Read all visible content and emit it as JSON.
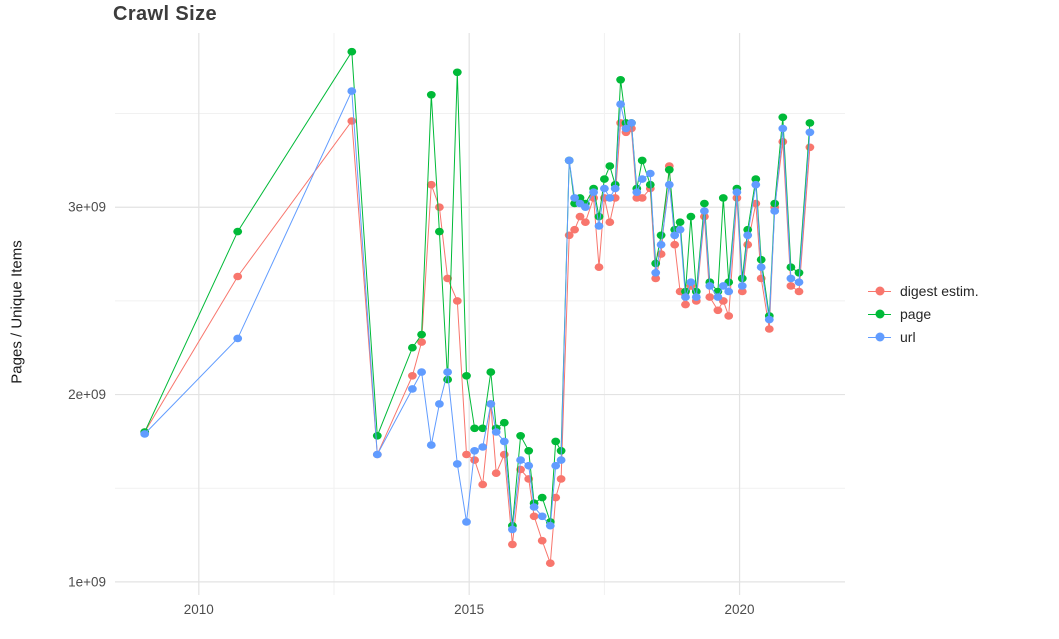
{
  "chart_data": {
    "type": "line",
    "title": "Crawl Size",
    "xlabel": "",
    "ylabel": "Pages / Unique Items",
    "y_values_scale": "1e+09",
    "x": [
      2009.0,
      2010.72,
      2012.83,
      2013.3,
      2013.95,
      2014.12,
      2014.3,
      2014.45,
      2014.6,
      2014.78,
      2014.95,
      2015.1,
      2015.25,
      2015.4,
      2015.5,
      2015.65,
      2015.8,
      2015.95,
      2016.1,
      2016.2,
      2016.35,
      2016.5,
      2016.6,
      2016.7,
      2016.85,
      2016.95,
      2017.05,
      2017.15,
      2017.3,
      2017.4,
      2017.5,
      2017.6,
      2017.7,
      2017.8,
      2017.9,
      2018.0,
      2018.1,
      2018.2,
      2018.35,
      2018.45,
      2018.55,
      2018.7,
      2018.8,
      2018.9,
      2019.0,
      2019.1,
      2019.2,
      2019.35,
      2019.45,
      2019.6,
      2019.7,
      2019.8,
      2019.95,
      2020.05,
      2020.15,
      2020.3,
      2020.4,
      2020.55,
      2020.65,
      2020.8,
      2020.95,
      2021.1,
      2021.3
    ],
    "series": [
      {
        "name": "digest estim.",
        "color": "#F8766D",
        "values": [
          1.8,
          2.63,
          3.46,
          1.68,
          2.1,
          2.28,
          3.12,
          3.0,
          2.62,
          2.5,
          1.68,
          1.65,
          1.52,
          1.95,
          1.58,
          1.68,
          1.2,
          1.6,
          1.55,
          1.35,
          1.22,
          1.1,
          1.45,
          1.55,
          2.85,
          2.88,
          2.95,
          2.92,
          3.05,
          2.68,
          3.05,
          2.92,
          3.05,
          3.45,
          3.4,
          3.42,
          3.05,
          3.05,
          3.1,
          2.62,
          2.75,
          3.22,
          2.8,
          2.55,
          2.48,
          2.58,
          2.5,
          2.95,
          2.52,
          2.45,
          2.5,
          2.42,
          3.05,
          2.55,
          2.8,
          3.02,
          2.62,
          2.35,
          3.0,
          3.35,
          2.58,
          2.55,
          3.32
        ]
      },
      {
        "name": "page",
        "color": "#00BA38",
        "values": [
          1.8,
          2.87,
          3.83,
          1.78,
          2.25,
          2.32,
          3.6,
          2.87,
          2.08,
          3.72,
          2.1,
          1.82,
          1.82,
          2.12,
          1.82,
          1.85,
          1.3,
          1.78,
          1.7,
          1.42,
          1.45,
          1.32,
          1.75,
          1.7,
          3.25,
          3.02,
          3.05,
          3.02,
          3.1,
          2.95,
          3.15,
          3.22,
          3.12,
          3.68,
          3.45,
          3.45,
          3.1,
          3.25,
          3.12,
          2.7,
          2.85,
          3.2,
          2.88,
          2.92,
          2.55,
          2.95,
          2.55,
          3.02,
          2.6,
          2.55,
          3.05,
          2.6,
          3.1,
          2.62,
          2.88,
          3.15,
          2.72,
          2.42,
          3.02,
          3.48,
          2.68,
          2.65,
          3.45
        ]
      },
      {
        "name": "url",
        "color": "#619CFF",
        "values": [
          1.79,
          2.3,
          3.62,
          1.68,
          2.03,
          2.12,
          1.73,
          1.95,
          2.12,
          1.63,
          1.32,
          1.7,
          1.72,
          1.95,
          1.8,
          1.75,
          1.28,
          1.65,
          1.62,
          1.4,
          1.35,
          1.3,
          1.62,
          1.65,
          3.25,
          3.05,
          3.02,
          3.0,
          3.08,
          2.9,
          3.1,
          3.05,
          3.1,
          3.55,
          3.42,
          3.45,
          3.08,
          3.15,
          3.18,
          2.65,
          2.8,
          3.12,
          2.85,
          2.88,
          2.52,
          2.6,
          2.52,
          2.98,
          2.58,
          2.52,
          2.58,
          2.55,
          3.08,
          2.58,
          2.85,
          3.12,
          2.68,
          2.4,
          2.98,
          3.42,
          2.62,
          2.6,
          3.4
        ]
      }
    ],
    "x_ticks": {
      "values": [
        2010,
        2015,
        2020
      ],
      "labels": [
        "2010",
        "2015",
        "2020"
      ]
    },
    "y_ticks": {
      "values": [
        1,
        2,
        3
      ],
      "labels": [
        "1e+09",
        "2e+09",
        "3e+09"
      ]
    },
    "x_minor_ticks": [
      2012.5,
      2017.5
    ],
    "y_minor_ticks": [
      1.5,
      2.5,
      3.5
    ],
    "xlim": [
      2008.45,
      2021.95
    ],
    "ylim": [
      0.93,
      3.93
    ],
    "grid": {
      "major_color": "#e3e3e3",
      "minor_color": "#f1f1f1",
      "background": "#ffffff"
    },
    "axis_text_color": "#4d4d4d",
    "title_color": "#3c3c3c",
    "legend_position": "right"
  }
}
